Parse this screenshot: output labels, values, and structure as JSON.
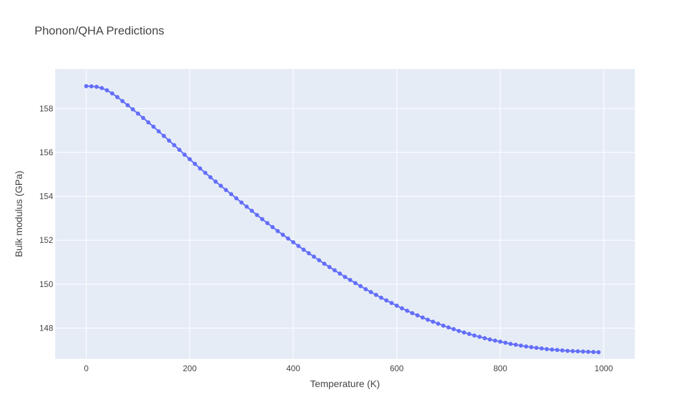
{
  "chart_data": {
    "type": "line",
    "mode": "lines+markers",
    "title": "Phonon/QHA Predictions",
    "xlabel": "Temperature (K)",
    "ylabel": "Bulk modulus (GPa)",
    "xlim": [
      -60,
      1060
    ],
    "ylim": [
      146.6,
      159.8
    ],
    "x_ticks": [
      0,
      200,
      400,
      600,
      800,
      1000
    ],
    "y_ticks": [
      148,
      150,
      152,
      154,
      156,
      158
    ],
    "grid": true,
    "legend": "none",
    "colors": {
      "series": "#636efa",
      "plot_bg": "#e5ecf6",
      "grid": "#ffffff",
      "text": "#444444"
    },
    "series": [
      {
        "x": [
          0,
          10,
          20,
          30,
          40,
          50,
          60,
          70,
          80,
          90,
          100,
          110,
          120,
          130,
          140,
          150,
          160,
          170,
          180,
          190,
          200,
          210,
          220,
          230,
          240,
          250,
          260,
          270,
          280,
          290,
          300,
          310,
          320,
          330,
          340,
          350,
          360,
          370,
          380,
          390,
          400,
          410,
          420,
          430,
          440,
          450,
          460,
          470,
          480,
          490,
          500,
          510,
          520,
          530,
          540,
          550,
          560,
          570,
          580,
          590,
          600,
          610,
          620,
          630,
          640,
          650,
          660,
          670,
          680,
          690,
          700,
          710,
          720,
          730,
          740,
          750,
          760,
          770,
          780,
          790,
          800,
          810,
          820,
          830,
          840,
          850,
          860,
          870,
          880,
          890,
          900,
          910,
          920,
          930,
          940,
          950,
          960,
          970,
          980,
          990
        ],
        "y": [
          159.02,
          159.01,
          158.99,
          158.93,
          158.83,
          158.69,
          158.52,
          158.34,
          158.15,
          157.96,
          157.77,
          157.57,
          157.37,
          157.17,
          156.96,
          156.75,
          156.54,
          156.33,
          156.12,
          155.9,
          155.69,
          155.48,
          155.27,
          155.07,
          154.87,
          154.67,
          154.48,
          154.29,
          154.1,
          153.91,
          153.72,
          153.53,
          153.34,
          153.15,
          152.96,
          152.78,
          152.6,
          152.42,
          152.25,
          152.08,
          151.91,
          151.74,
          151.57,
          151.41,
          151.25,
          151.09,
          150.93,
          150.78,
          150.63,
          150.48,
          150.33,
          150.19,
          150.05,
          149.91,
          149.77,
          149.64,
          149.51,
          149.38,
          149.26,
          149.14,
          149.02,
          148.9,
          148.79,
          148.68,
          148.58,
          148.48,
          148.38,
          148.29,
          148.2,
          148.11,
          148.03,
          147.95,
          147.87,
          147.8,
          147.73,
          147.66,
          147.6,
          147.54,
          147.48,
          147.43,
          147.38,
          147.33,
          147.28,
          147.24,
          147.2,
          147.16,
          147.13,
          147.1,
          147.07,
          147.04,
          147.02,
          147.0,
          146.98,
          146.96,
          146.95,
          146.94,
          146.93,
          146.92,
          146.91,
          146.9
        ]
      }
    ]
  }
}
